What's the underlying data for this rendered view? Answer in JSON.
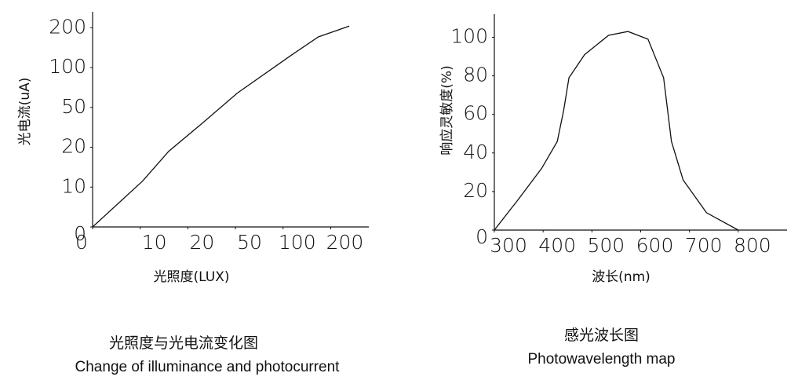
{
  "chart_data": [
    {
      "type": "line",
      "scale": "piecewise",
      "caption": "光照度与光电流变化图",
      "caption_en": "Change of illuminance and photocurrent",
      "x_label": "光照度(LUX)",
      "y_label": "光电流(uA)",
      "xlim": [
        0,
        280
      ],
      "xticks": [
        0,
        10,
        20,
        50,
        100,
        200
      ],
      "ylim": [
        0,
        240
      ],
      "yticks": [
        0,
        10,
        20,
        50,
        100,
        200
      ],
      "color": "#111111",
      "x": [
        0,
        10.5,
        16,
        30,
        52,
        116,
        174,
        239
      ],
      "values": [
        0,
        11.5,
        19,
        39,
        68,
        130,
        177,
        204
      ]
    },
    {
      "type": "line",
      "scale": "linear",
      "caption": "感光波长图",
      "caption_en": "Photowavelength map",
      "x_label": "波长(nm)",
      "y_label": "响应灵敏度(%)",
      "xlim": [
        300,
        900
      ],
      "xticks": [
        300,
        400,
        500,
        600,
        700,
        800
      ],
      "ylim": [
        0,
        112
      ],
      "yticks": [
        0,
        20,
        40,
        60,
        80,
        100
      ],
      "color": "#111111",
      "x": [
        300,
        348,
        397,
        429,
        442,
        453,
        485,
        534,
        574,
        615,
        647,
        663,
        687,
        735,
        800
      ],
      "values": [
        0,
        15.5,
        32,
        46,
        62,
        79,
        91,
        101,
        103,
        99,
        79,
        46,
        26,
        9,
        0
      ]
    }
  ]
}
